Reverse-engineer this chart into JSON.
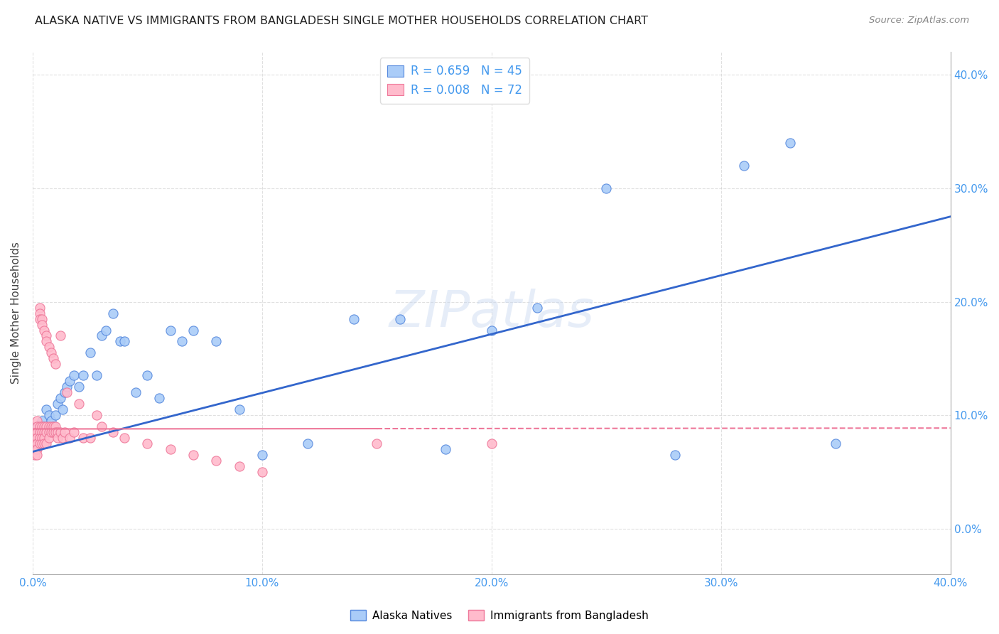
{
  "title": "ALASKA NATIVE VS IMMIGRANTS FROM BANGLADESH SINGLE MOTHER HOUSEHOLDS CORRELATION CHART",
  "source": "Source: ZipAtlas.com",
  "ylabel": "Single Mother Households",
  "watermark": "ZIPatlas",
  "alaska_R": 0.659,
  "alaska_N": 45,
  "bangladesh_R": 0.008,
  "bangladesh_N": 72,
  "alaska_color": "#aaccf8",
  "alaska_edge_color": "#5588dd",
  "alaska_line_color": "#3366cc",
  "bangladesh_color": "#ffbbcc",
  "bangladesh_edge_color": "#ee7799",
  "bangladesh_line_color": "#ee7799",
  "background_color": "#ffffff",
  "grid_color": "#cccccc",
  "axis_color": "#4499ee",
  "legend_label_1": "Alaska Natives",
  "legend_label_2": "Immigrants from Bangladesh",
  "alaska_points_x": [
    0.002,
    0.003,
    0.004,
    0.005,
    0.006,
    0.007,
    0.008,
    0.009,
    0.01,
    0.011,
    0.012,
    0.013,
    0.014,
    0.015,
    0.016,
    0.018,
    0.02,
    0.022,
    0.025,
    0.028,
    0.03,
    0.032,
    0.035,
    0.038,
    0.04,
    0.045,
    0.05,
    0.055,
    0.06,
    0.065,
    0.07,
    0.08,
    0.09,
    0.1,
    0.12,
    0.14,
    0.16,
    0.18,
    0.2,
    0.22,
    0.25,
    0.28,
    0.31,
    0.33,
    0.35
  ],
  "alaska_points_y": [
    0.09,
    0.085,
    0.095,
    0.09,
    0.105,
    0.1,
    0.095,
    0.09,
    0.1,
    0.11,
    0.115,
    0.105,
    0.12,
    0.125,
    0.13,
    0.135,
    0.125,
    0.135,
    0.155,
    0.135,
    0.17,
    0.175,
    0.19,
    0.165,
    0.165,
    0.12,
    0.135,
    0.115,
    0.175,
    0.165,
    0.175,
    0.165,
    0.105,
    0.065,
    0.075,
    0.185,
    0.185,
    0.07,
    0.175,
    0.195,
    0.3,
    0.065,
    0.32,
    0.34,
    0.075
  ],
  "bangladesh_points_x": [
    0.001,
    0.001,
    0.001,
    0.001,
    0.001,
    0.002,
    0.002,
    0.002,
    0.002,
    0.002,
    0.002,
    0.002,
    0.003,
    0.003,
    0.003,
    0.003,
    0.003,
    0.003,
    0.003,
    0.004,
    0.004,
    0.004,
    0.004,
    0.004,
    0.004,
    0.005,
    0.005,
    0.005,
    0.005,
    0.005,
    0.006,
    0.006,
    0.006,
    0.006,
    0.006,
    0.007,
    0.007,
    0.007,
    0.007,
    0.008,
    0.008,
    0.008,
    0.009,
    0.009,
    0.009,
    0.01,
    0.01,
    0.01,
    0.011,
    0.011,
    0.012,
    0.012,
    0.013,
    0.014,
    0.015,
    0.016,
    0.018,
    0.02,
    0.022,
    0.025,
    0.028,
    0.03,
    0.035,
    0.04,
    0.05,
    0.06,
    0.07,
    0.08,
    0.09,
    0.1,
    0.15,
    0.2
  ],
  "bangladesh_points_y": [
    0.085,
    0.08,
    0.075,
    0.07,
    0.065,
    0.095,
    0.09,
    0.085,
    0.08,
    0.075,
    0.07,
    0.065,
    0.195,
    0.19,
    0.185,
    0.09,
    0.085,
    0.08,
    0.075,
    0.185,
    0.18,
    0.09,
    0.085,
    0.08,
    0.075,
    0.175,
    0.09,
    0.085,
    0.08,
    0.075,
    0.17,
    0.165,
    0.09,
    0.085,
    0.075,
    0.16,
    0.09,
    0.085,
    0.08,
    0.155,
    0.09,
    0.085,
    0.15,
    0.09,
    0.085,
    0.145,
    0.09,
    0.085,
    0.085,
    0.08,
    0.17,
    0.085,
    0.08,
    0.085,
    0.12,
    0.08,
    0.085,
    0.11,
    0.08,
    0.08,
    0.1,
    0.09,
    0.085,
    0.08,
    0.075,
    0.07,
    0.065,
    0.06,
    0.055,
    0.05,
    0.075,
    0.075
  ]
}
